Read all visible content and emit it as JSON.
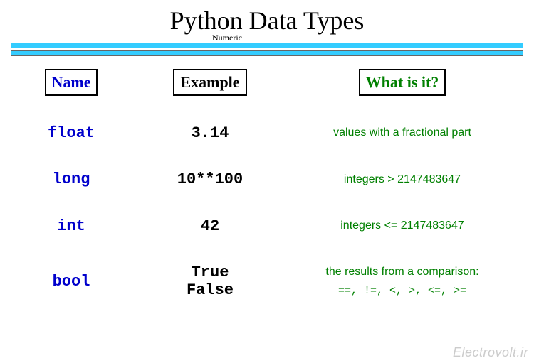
{
  "title": "Python  Data Types",
  "subtitle": "Numeric",
  "subtitle_marker": "ˇ",
  "divider": {
    "bar_color": "#33ccff",
    "border_color": "#666666"
  },
  "headers": {
    "name": "Name",
    "example": "Example",
    "what": "What is it?"
  },
  "colors": {
    "name": "#0000cc",
    "example": "#000000",
    "what": "#008000",
    "background": "#ffffff"
  },
  "fonts": {
    "title_family": "Times New Roman",
    "title_size_pt": 36,
    "mono_family": "Courier New",
    "what_family": "Comic Sans MS",
    "header_size_pt": 22,
    "body_name_size_pt": 22,
    "body_example_size_pt": 22,
    "body_what_size_pt": 16
  },
  "rows": [
    {
      "name": "float",
      "example": "3.14",
      "what": "values with a\nfractional part"
    },
    {
      "name": "long",
      "example": "10**100",
      "what": "integers > 2147483647"
    },
    {
      "name": "int",
      "example": "42",
      "what": "integers <= 2147483647"
    },
    {
      "name": "bool",
      "example": "True\nFalse",
      "what": "the results from a comparison:",
      "what_ops": "==, !=, <, >, <=, >="
    }
  ],
  "watermark": "Electrovolt.ir"
}
